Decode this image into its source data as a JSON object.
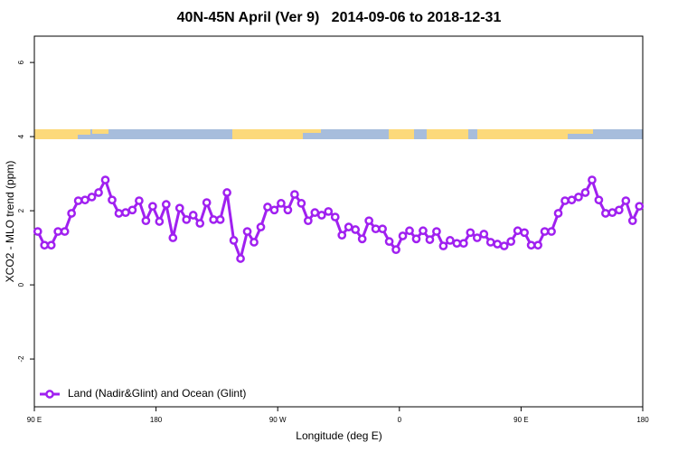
{
  "chart_data": {
    "type": "line",
    "title": "40N-45N April (Ver 9)   2014-09-06 to 2018-12-31",
    "x_label": "Longitude (deg E)",
    "y_label": "XCO2 - MLO trend (ppm)",
    "xlim": [
      90,
      540
    ],
    "xticks": [
      {
        "value": 90,
        "label": "90 E"
      },
      180,
      {
        "value": 270,
        "label": "90 W"
      },
      {
        "value": 360,
        "label": "0"
      },
      {
        "value": 450,
        "label": "90 E"
      },
      {
        "value": 540,
        "label": "180"
      }
    ],
    "ylim": [
      -3.29,
      6.71
    ],
    "yticks": [
      -2,
      0,
      2,
      4,
      6
    ],
    "legend": "bottomleft",
    "x": [
      92.5,
      97.5,
      102.5,
      107.5,
      112.5,
      117.5,
      122.5,
      127.5,
      132.5,
      137.5,
      142.5,
      147.5,
      152.5,
      157.5,
      162.5,
      167.5,
      172.5,
      177.5,
      182.5,
      187.5,
      192.5,
      197.5,
      202.5,
      207.5,
      212.5,
      217.5,
      222.5,
      227.5,
      232.5,
      237.5,
      242.5,
      247.5,
      252.5,
      257.5,
      262.5,
      267.5,
      272.5,
      277.5,
      282.5,
      287.5,
      292.5,
      297.5,
      302.5,
      307.5,
      312.5,
      317.5,
      322.5,
      327.5,
      332.5,
      337.5,
      342.5,
      347.5,
      352.5,
      357.5,
      362.5,
      367.5,
      372.5,
      377.5,
      382.5,
      387.5,
      392.5,
      397.5,
      402.5,
      407.5,
      412.5,
      417.5,
      422.5,
      427.5,
      432.5,
      437.5,
      442.5,
      447.5,
      452.5,
      457.5,
      462.5,
      467.5,
      472.5,
      477.5,
      482.5,
      487.5,
      492.5,
      497.5,
      502.5,
      507.5,
      512.5,
      517.5,
      522.5,
      527.5,
      532.5,
      537.5
    ],
    "series": [
      {
        "name": "Land (Nadir&Glint) and Ocean (Glint)",
        "color": "#a020f0",
        "values": [
          1.44,
          1.07,
          1.07,
          1.44,
          1.44,
          1.93,
          2.27,
          2.29,
          2.37,
          2.49,
          2.83,
          2.29,
          1.93,
          1.95,
          2.02,
          2.27,
          1.73,
          2.12,
          1.71,
          2.17,
          1.27,
          2.07,
          1.76,
          1.88,
          1.66,
          2.22,
          1.76,
          1.76,
          2.49,
          1.2,
          0.71,
          1.44,
          1.15,
          1.56,
          2.1,
          2.02,
          2.2,
          2.02,
          2.44,
          2.2,
          1.73,
          1.95,
          1.88,
          1.98,
          1.83,
          1.34,
          1.56,
          1.49,
          1.24,
          1.73,
          1.51,
          1.51,
          1.17,
          0.95,
          1.32,
          1.46,
          1.24,
          1.46,
          1.22,
          1.44,
          1.05,
          1.2,
          1.12,
          1.12,
          1.41,
          1.27,
          1.37,
          1.15,
          1.1,
          1.05,
          1.17,
          1.46,
          1.41,
          1.07,
          1.07,
          1.44,
          1.44,
          1.93,
          2.27,
          2.29,
          2.37,
          2.49,
          2.83,
          2.29,
          1.93,
          1.95,
          2.02,
          2.27,
          1.73,
          2.12
        ]
      }
    ]
  }
}
